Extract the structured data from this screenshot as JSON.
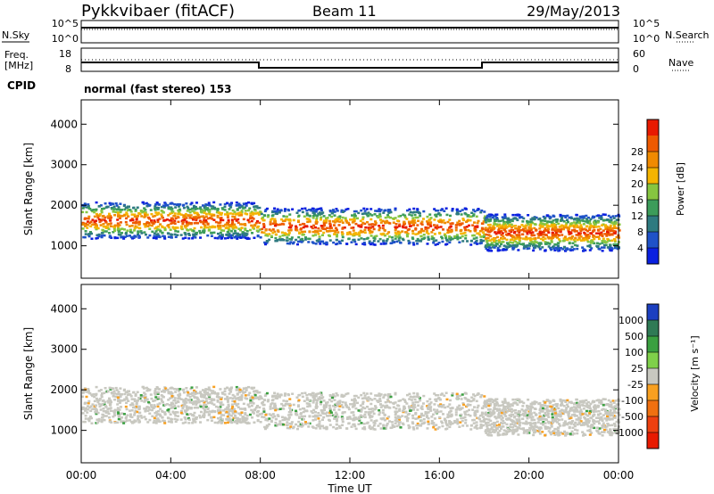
{
  "header": {
    "station": "Pykkvibaer (fitACF)",
    "beam": "Beam 11",
    "date": "29/May/2013"
  },
  "status_panels": {
    "nsky_label": "N.Sky",
    "nsearch_label": "N.Search",
    "nsky_ticks": [
      "10^5",
      "10^0"
    ],
    "nsearch_ticks": [
      "10^5",
      "10^0"
    ],
    "freq_label_line1": "Freq.",
    "freq_label_line2": "[MHz]",
    "freq_ticks": [
      "18",
      "8"
    ],
    "nave_label": "Nave",
    "nave_ticks": [
      "60",
      "0"
    ],
    "cpid_label": "CPID",
    "cpid_text": "normal (fast stereo) 153"
  },
  "chart_data": [
    {
      "type": "heatmap",
      "name": "power",
      "ylabel": "Slant Range [km]",
      "yticks": [
        "1000",
        "2000",
        "3000",
        "4000"
      ],
      "ylim": [
        200,
        4600
      ],
      "colorbar_label": "Power [dB]",
      "colorbar_ticks": [
        "4",
        "8",
        "12",
        "16",
        "20",
        "24",
        "28"
      ],
      "colorbar_colors": [
        "#0a20e0",
        "#1f52c8",
        "#2e7a80",
        "#3c9c5a",
        "#86c540",
        "#f4b400",
        "#f08a00",
        "#ee5a00",
        "#e81a00"
      ],
      "bands": [
        {
          "start_hour": 0,
          "end_hour": 8,
          "range_km": 1650,
          "color": "#f06000"
        },
        {
          "start_hour": 8,
          "end_hour": 18,
          "range_km": 1500,
          "color": "#f08a00"
        },
        {
          "start_hour": 18,
          "end_hour": 24,
          "range_km": 1350,
          "color": "#e82a00"
        }
      ]
    },
    {
      "type": "heatmap",
      "name": "velocity",
      "ylabel": "Slant Range [km]",
      "yticks": [
        "1000",
        "2000",
        "3000",
        "4000"
      ],
      "ylim": [
        200,
        4600
      ],
      "colorbar_label": "Velocity [m s⁻¹]",
      "colorbar_ticks": [
        "1000",
        "500",
        "100",
        "25",
        "-25",
        "-100",
        "-500",
        "-1000"
      ],
      "colorbar_colors": [
        "#1c3fc0",
        "#2f7a55",
        "#3aa040",
        "#7fd04a",
        "#c8c8c0",
        "#f8a020",
        "#f07010",
        "#ee4010",
        "#e81a00"
      ],
      "xlabel": "Time UT",
      "xticks": [
        "00:00",
        "04:00",
        "08:00",
        "12:00",
        "16:00",
        "20:00",
        "00:00"
      ],
      "xlim": [
        0,
        24
      ]
    }
  ]
}
